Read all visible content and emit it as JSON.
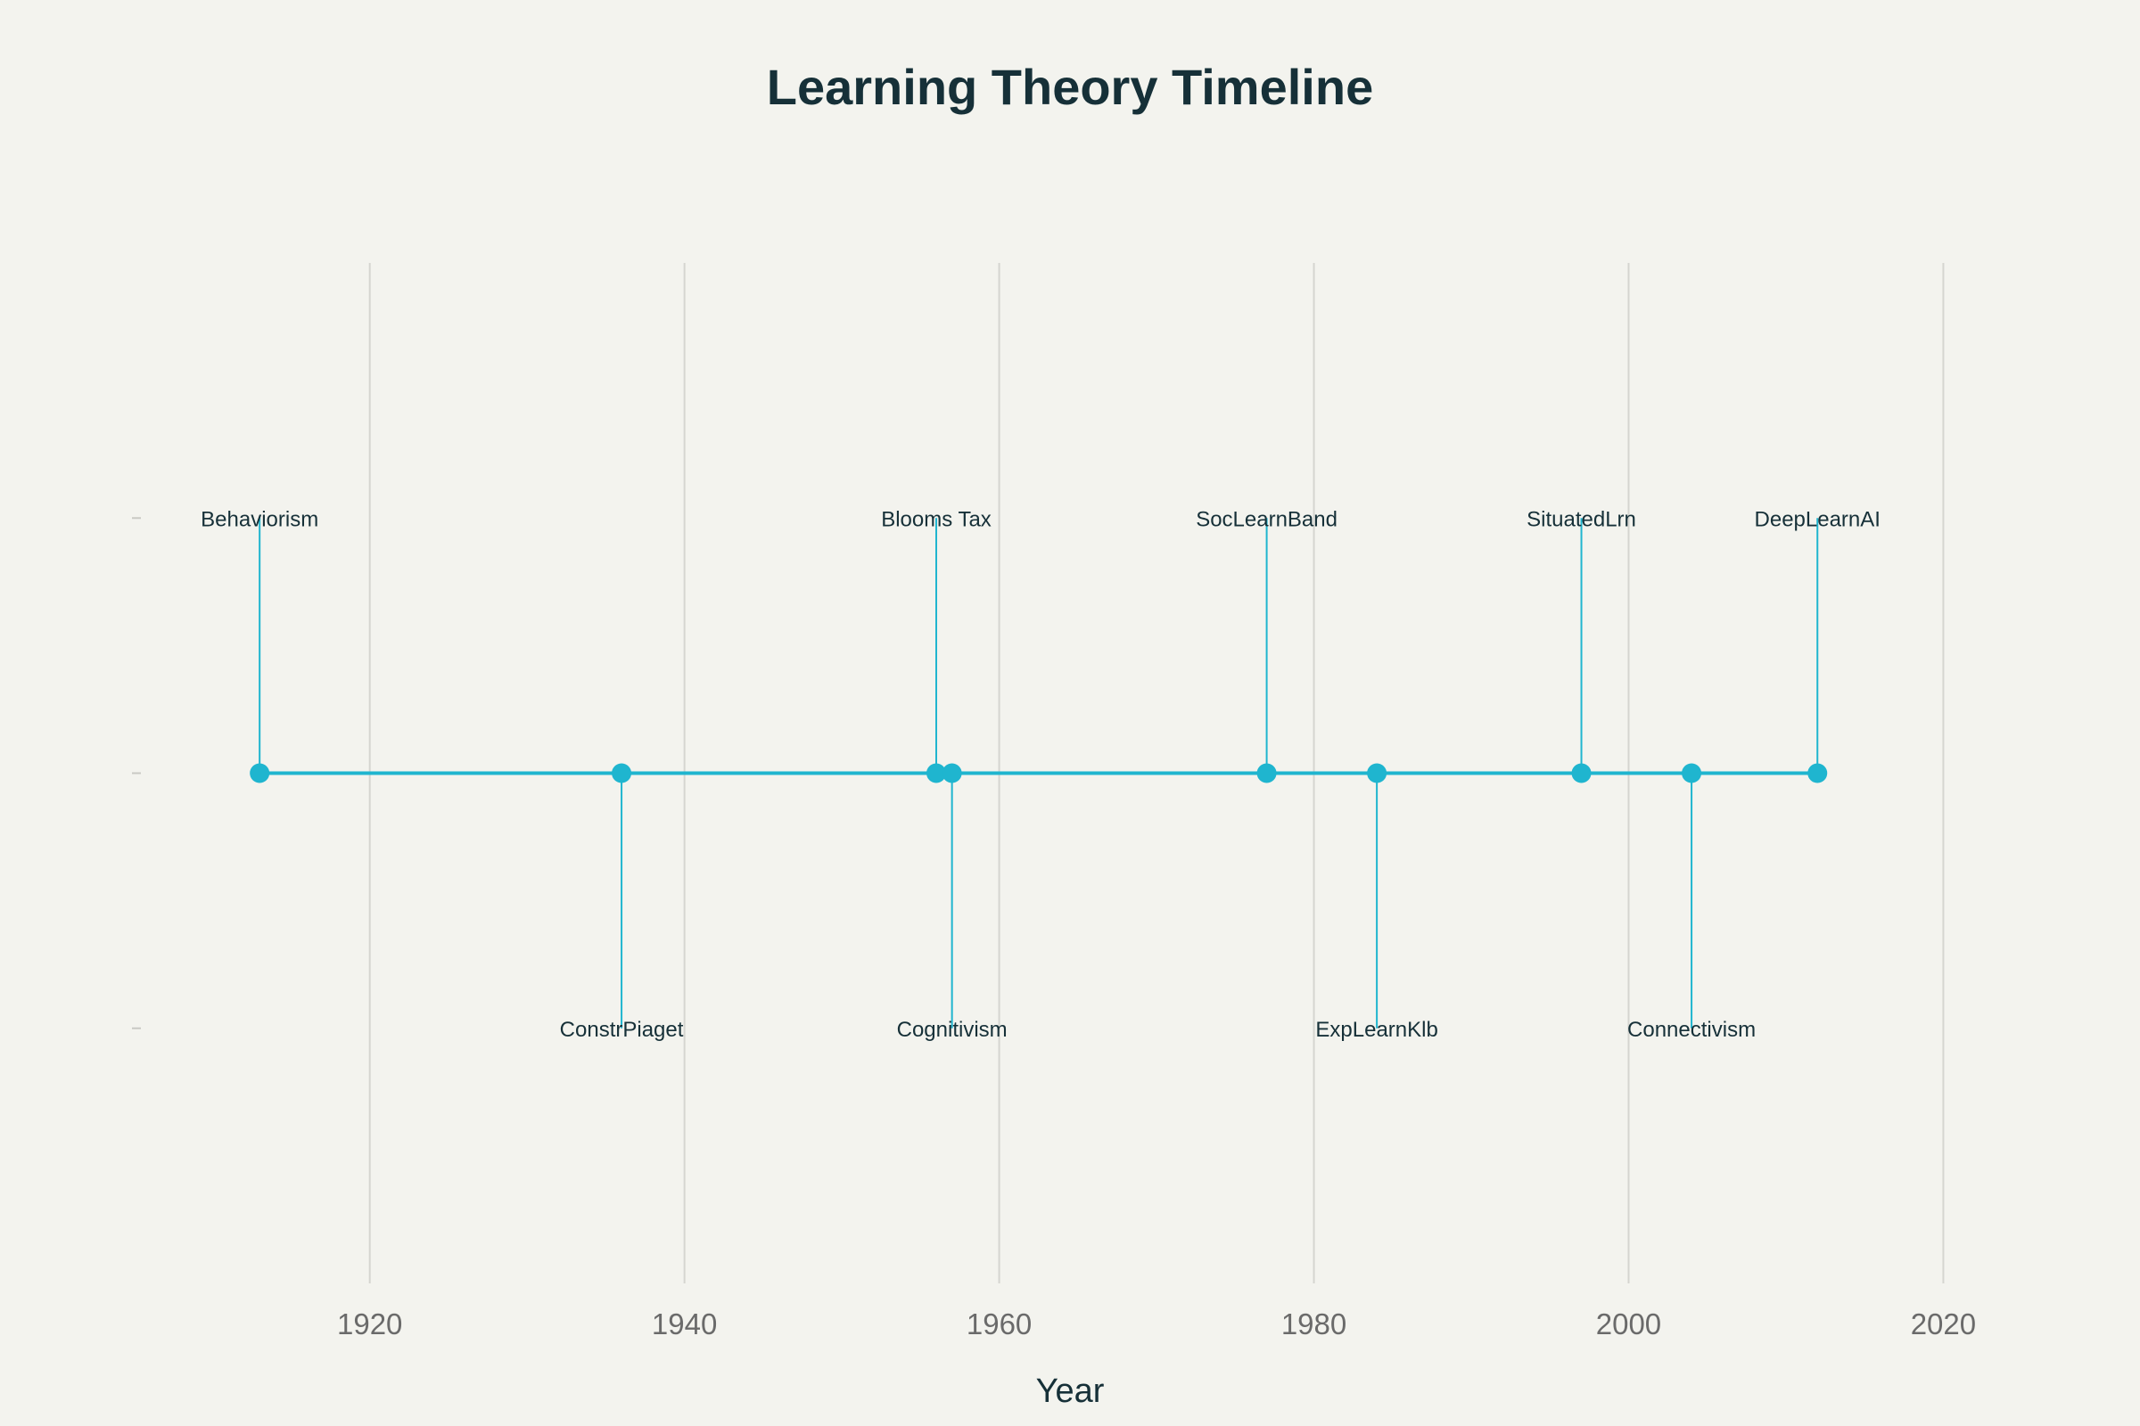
{
  "chart_data": {
    "type": "line",
    "title": "Learning Theory Timeline",
    "xlabel": "Year",
    "ylabel": "",
    "xlim": [
      1905,
      2024
    ],
    "ylim": [
      -2,
      2
    ],
    "xticks": [
      1920,
      1940,
      1960,
      1980,
      2000,
      2020
    ],
    "grid": true,
    "legend": "none",
    "colors": {
      "line": "#1fb5cf",
      "marker": "#1fb5cf",
      "grid": "#d5d5d0",
      "text": "#163038",
      "tick_text": "#6a6a6a",
      "background": "#f3f3ee"
    },
    "series": [
      {
        "points": [
          {
            "x": 1913,
            "y": 0,
            "label": "Behaviorism",
            "label_y": 1
          },
          {
            "x": 1936,
            "y": 0,
            "label": "ConstrPiaget",
            "label_y": -1
          },
          {
            "x": 1956,
            "y": 0,
            "label": "Blooms Tax",
            "label_y": 1
          },
          {
            "x": 1957,
            "y": 0,
            "label": "Cognitivism",
            "label_y": -1
          },
          {
            "x": 1977,
            "y": 0,
            "label": "SocLearnBand",
            "label_y": 1
          },
          {
            "x": 1984,
            "y": 0,
            "label": "ExpLearnKlb",
            "label_y": -1
          },
          {
            "x": 1997,
            "y": 0,
            "label": "SituatedLrn",
            "label_y": 1
          },
          {
            "x": 2004,
            "y": 0,
            "label": "Connectivism",
            "label_y": -1
          },
          {
            "x": 2012,
            "y": 0,
            "label": "DeepLearnAI",
            "label_y": 1
          }
        ]
      }
    ]
  }
}
